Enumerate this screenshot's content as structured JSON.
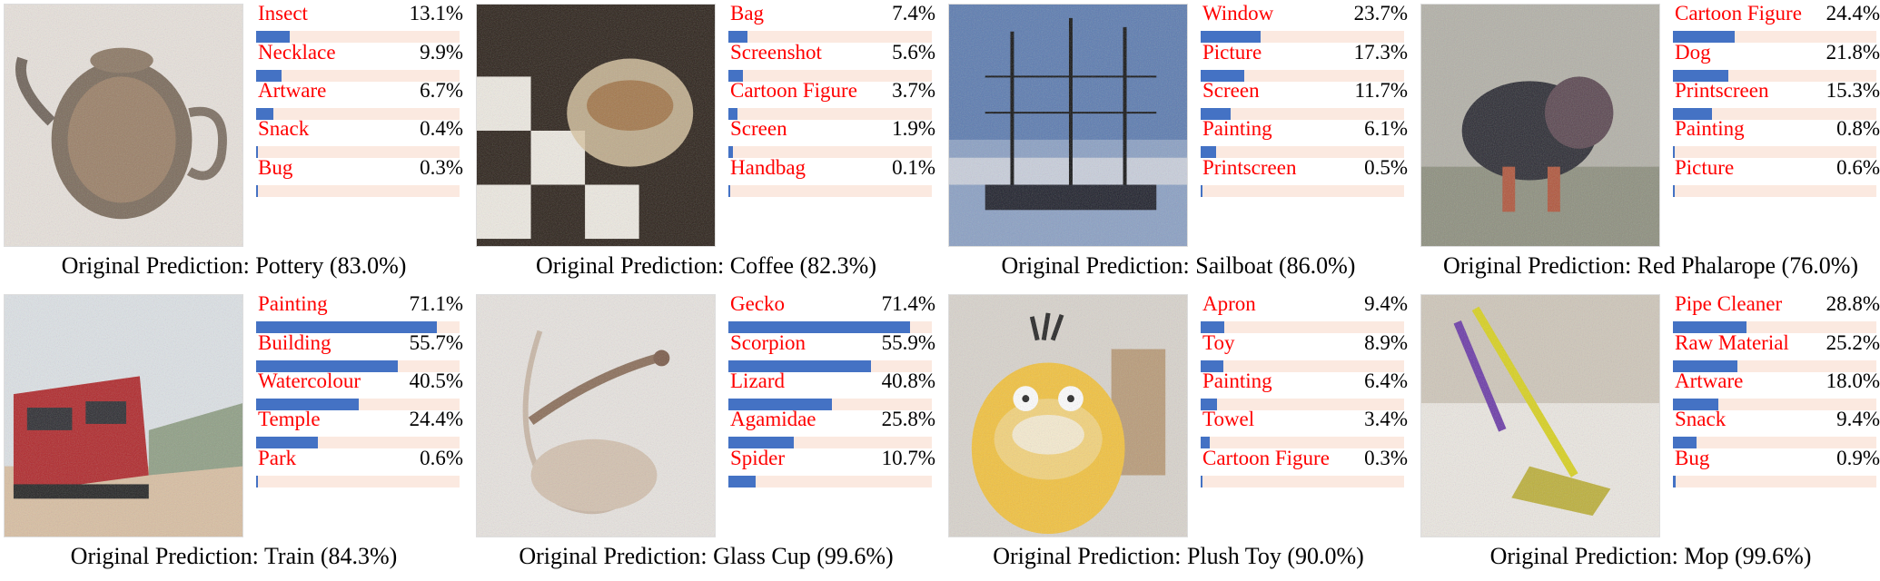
{
  "caption_prefix": "Original Prediction:",
  "colors": {
    "label": "#ff0000",
    "bar_fill": "#4472c4",
    "bar_track": "#fbe9e0"
  },
  "chart_data": [
    {
      "type": "bar",
      "orientation": "horizontal",
      "image": "teapot",
      "original_prediction": "Pottery (83.0%)",
      "categories": [
        "Insect",
        "Necklace",
        "Artware",
        "Snack",
        "Bug"
      ],
      "values": [
        13.1,
        9.9,
        6.7,
        0.4,
        0.3
      ],
      "value_labels": [
        "13.1%",
        "9.9%",
        "6.7%",
        "0.4%",
        "0.3%"
      ],
      "xlim": [
        0,
        100
      ]
    },
    {
      "type": "bar",
      "orientation": "horizontal",
      "image": "coffee-glass",
      "original_prediction": "Coffee (82.3%)",
      "categories": [
        "Bag",
        "Screenshot",
        "Cartoon Figure",
        "Screen",
        "Handbag"
      ],
      "values": [
        7.4,
        5.6,
        3.7,
        1.9,
        0.1
      ],
      "value_labels": [
        "7.4%",
        "5.6%",
        "3.7%",
        "1.9%",
        "0.1%"
      ],
      "xlim": [
        0,
        100
      ]
    },
    {
      "type": "bar",
      "orientation": "horizontal",
      "image": "sailboat",
      "original_prediction": "Sailboat (86.0%)",
      "categories": [
        "Window",
        "Picture",
        "Screen",
        "Painting",
        "Printscreen"
      ],
      "values": [
        23.7,
        17.3,
        11.7,
        6.1,
        0.5
      ],
      "value_labels": [
        "23.7%",
        "17.3%",
        "11.7%",
        "6.1%",
        "0.5%"
      ],
      "xlim": [
        0,
        100
      ]
    },
    {
      "type": "bar",
      "orientation": "horizontal",
      "image": "bird-dog",
      "original_prediction": "Red Phalarope (76.0%)",
      "categories": [
        "Cartoon Figure",
        "Dog",
        "Printscreen",
        "Painting",
        "Picture"
      ],
      "values": [
        24.4,
        21.8,
        15.3,
        0.8,
        0.6
      ],
      "value_labels": [
        "24.4%",
        "21.8%",
        "15.3%",
        "0.8%",
        "0.6%"
      ],
      "xlim": [
        0,
        100
      ]
    },
    {
      "type": "bar",
      "orientation": "horizontal",
      "image": "train",
      "original_prediction": "Train (84.3%)",
      "categories": [
        "Painting",
        "Building",
        "Watercolour",
        "Temple",
        "Park"
      ],
      "values": [
        71.1,
        55.7,
        40.5,
        24.4,
        0.6
      ],
      "value_labels": [
        "71.1%",
        "55.7%",
        "40.5%",
        "24.4%",
        "0.6%"
      ],
      "xlim": [
        0,
        100
      ]
    },
    {
      "type": "bar",
      "orientation": "horizontal",
      "image": "glass-cup-lizard",
      "original_prediction": "Glass Cup (99.6%)",
      "categories": [
        "Gecko",
        "Scorpion",
        "Lizard",
        "Agamidae",
        "Spider"
      ],
      "values": [
        71.4,
        55.9,
        40.8,
        25.8,
        10.7
      ],
      "value_labels": [
        "71.4%",
        "55.9%",
        "40.8%",
        "25.8%",
        "10.7%"
      ],
      "xlim": [
        0,
        100
      ]
    },
    {
      "type": "bar",
      "orientation": "horizontal",
      "image": "plush-toy",
      "original_prediction": "Plush Toy (90.0%)",
      "categories": [
        "Apron",
        "Toy",
        "Painting",
        "Towel",
        "Cartoon Figure"
      ],
      "values": [
        9.4,
        8.9,
        6.4,
        3.4,
        0.3
      ],
      "value_labels": [
        "9.4%",
        "8.9%",
        "6.4%",
        "3.4%",
        "0.3%"
      ],
      "xlim": [
        0,
        100
      ]
    },
    {
      "type": "bar",
      "orientation": "horizontal",
      "image": "mop",
      "original_prediction": "Mop (99.6%)",
      "categories": [
        "Pipe Cleaner",
        "Raw Material",
        "Artware",
        "Snack",
        "Bug"
      ],
      "values": [
        28.8,
        25.2,
        18.0,
        9.4,
        0.9
      ],
      "value_labels": [
        "28.8%",
        "25.2%",
        "18.0%",
        "9.4%",
        "0.9%"
      ],
      "xlim": [
        0,
        100
      ]
    }
  ]
}
